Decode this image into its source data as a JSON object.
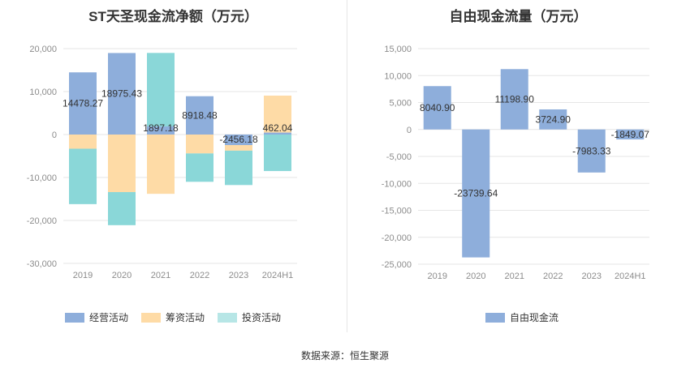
{
  "left": {
    "title": "ST天圣现金流净额（万元）",
    "legend": [
      {
        "label": "经营活动",
        "color": "#8eaedb"
      },
      {
        "label": "筹资活动",
        "color": "#fedba6"
      },
      {
        "label": "投资活动",
        "color": "#b7e6e6"
      }
    ]
  },
  "right": {
    "title": "自由现金流量（万元）",
    "legend": [
      {
        "label": "自由现金流",
        "color": "#8eaedb"
      }
    ]
  },
  "source": "数据来源：恒生聚源",
  "chart_data": [
    {
      "type": "bar",
      "stacked": true,
      "title": "ST天圣现金流净额（万元）",
      "categories": [
        "2019",
        "2020",
        "2021",
        "2022",
        "2023",
        "2024H1"
      ],
      "ylim": [
        -30000,
        20000
      ],
      "yticks": [
        20000,
        10000,
        0,
        -10000,
        -20000,
        -30000
      ],
      "ytick_labels": [
        "20,000",
        "10,000",
        "0",
        "-10,000",
        "-20,000",
        "-30,000"
      ],
      "grid": true,
      "legend_position": "bottom",
      "series": [
        {
          "name": "经营活动",
          "color": "#8eaedb",
          "values": [
            14478.27,
            18975.43,
            1897.18,
            8918.48,
            -2456.18,
            462.04
          ]
        },
        {
          "name": "筹资活动",
          "color": "#fedba6",
          "values": [
            -3300,
            -13400,
            -13800,
            -4400,
            -1300,
            8600
          ]
        },
        {
          "name": "投资活动",
          "color": "#8ad7d8",
          "values": [
            -12900,
            -7700,
            17100,
            -6600,
            -8000,
            -8500
          ]
        }
      ],
      "data_labels": [
        "14478.27",
        "18975.43",
        "1897.18",
        "8918.48",
        "-2456.18",
        "462.04"
      ]
    },
    {
      "type": "bar",
      "title": "自由现金流量（万元）",
      "categories": [
        "2019",
        "2020",
        "2021",
        "2022",
        "2023",
        "2024H1"
      ],
      "ylim": [
        -25000,
        15000
      ],
      "yticks": [
        15000,
        10000,
        5000,
        0,
        -5000,
        -10000,
        -15000,
        -20000,
        -25000
      ],
      "ytick_labels": [
        "15,000",
        "10,000",
        "5,000",
        "0",
        "-5,000",
        "-10,000",
        "-15,000",
        "-20,000",
        "-25,000"
      ],
      "grid": true,
      "legend_position": "bottom",
      "series": [
        {
          "name": "自由现金流",
          "color": "#8eaedb",
          "values": [
            8040.9,
            -23739.64,
            11198.9,
            3724.9,
            -7983.33,
            -1849.07
          ]
        }
      ],
      "data_labels": [
        "8040.90",
        "-23739.64",
        "11198.90",
        "3724.90",
        "-7983.33",
        "-1849.07"
      ]
    }
  ]
}
